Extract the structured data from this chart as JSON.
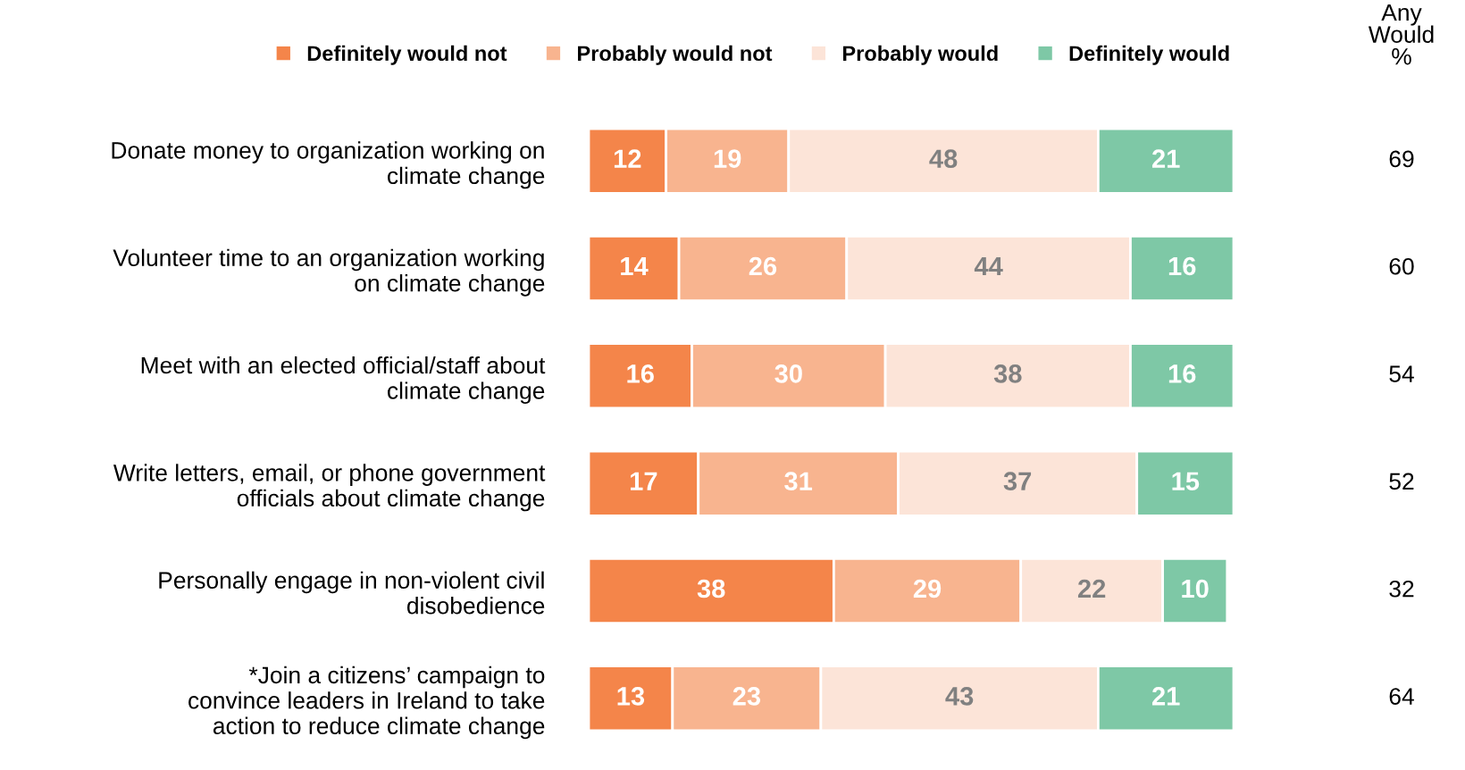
{
  "chart_data": {
    "type": "bar",
    "orientation": "horizontal",
    "stacked": true,
    "data_labels": true,
    "legend": "top",
    "grid": false,
    "tick_labels": "y",
    "categories": [
      "Donate money to organization working on\nclimate change",
      "Volunteer time to an organization working\non climate change",
      "Meet with an elected official/staff about\nclimate change",
      "Write letters, email, or phone government\nofficials about climate change",
      "Personally engage in non-violent civil\ndisobedience",
      "*Join a citizens’ campaign to\nconvince leaders in Ireland to take\naction to reduce climate change"
    ],
    "series": [
      {
        "name": "Definitely would not",
        "color": "#f4854a",
        "values": [
          12,
          14,
          16,
          17,
          38,
          13
        ]
      },
      {
        "name": "Probably would not",
        "color": "#f8b48f",
        "values": [
          19,
          26,
          30,
          31,
          29,
          23
        ]
      },
      {
        "name": "Probably would",
        "color": "#fce4d8",
        "values": [
          48,
          44,
          38,
          37,
          22,
          43
        ]
      },
      {
        "name": "Definitely would",
        "color": "#7ec8a6",
        "values": [
          21,
          16,
          16,
          15,
          10,
          21
        ]
      }
    ],
    "annotations": [
      "Any\nWould\n%",
      "69",
      "60",
      "54",
      "52",
      "32",
      "64"
    ]
  }
}
